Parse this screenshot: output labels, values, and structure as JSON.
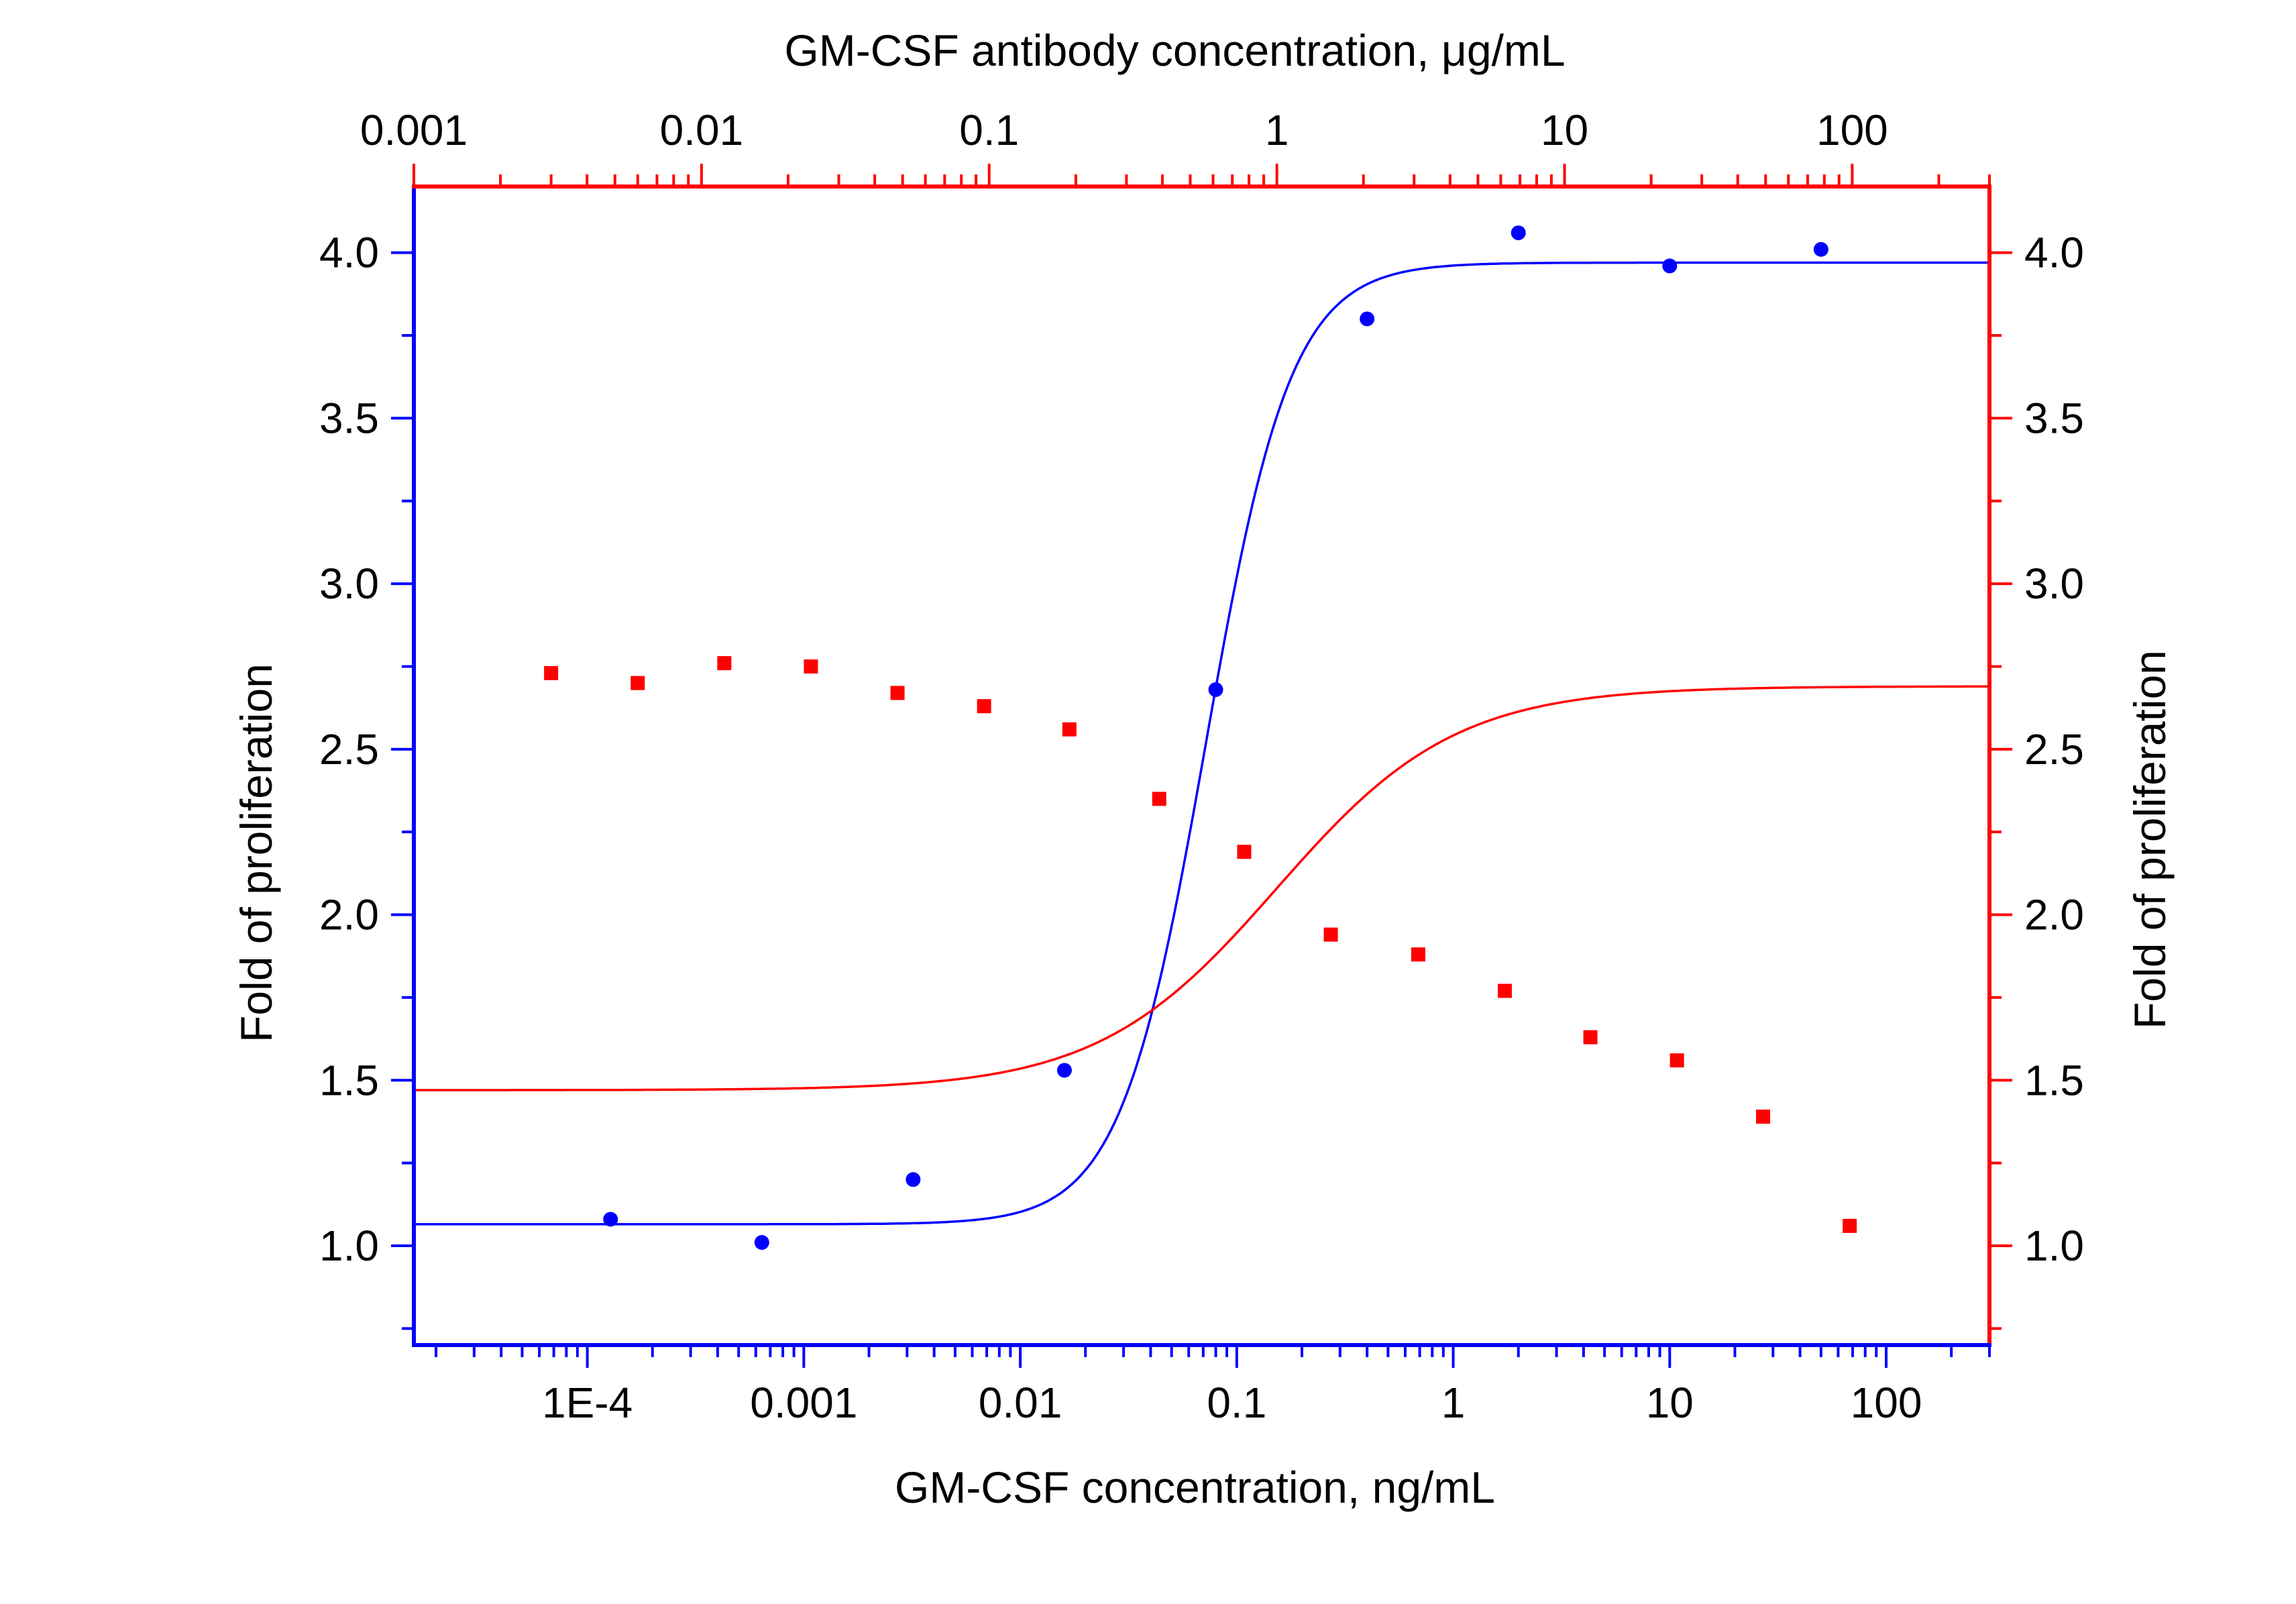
{
  "chart_data": {
    "type": "scatter",
    "colors": {
      "blue": "#0000ff",
      "red": "#ff0000",
      "text": "#000000",
      "background": "#ffffff"
    },
    "bottom_axis": {
      "title": "GM-CSF concentration, ng/mL",
      "scale": "log",
      "range": [
        1.58e-05,
        300
      ],
      "ticks": [
        {
          "value": 0.0001,
          "label": "1E-4"
        },
        {
          "value": 0.001,
          "label": "0.001"
        },
        {
          "value": 0.01,
          "label": "0.01"
        },
        {
          "value": 0.1,
          "label": "0.1"
        },
        {
          "value": 1,
          "label": "1"
        },
        {
          "value": 10,
          "label": "10"
        },
        {
          "value": 100,
          "label": "100"
        }
      ],
      "color": "#0000ff"
    },
    "top_axis": {
      "title": "GM-CSF antibody concentration, μg/mL",
      "scale": "log",
      "range": [
        0.001,
        300
      ],
      "ticks": [
        {
          "value": 0.001,
          "label": "0.001"
        },
        {
          "value": 0.01,
          "label": "0.01"
        },
        {
          "value": 0.1,
          "label": "0.1"
        },
        {
          "value": 1,
          "label": "1"
        },
        {
          "value": 10,
          "label": "10"
        },
        {
          "value": 100,
          "label": "100"
        }
      ],
      "color": "#ff0000"
    },
    "left_axis": {
      "title": "Fold of proliferation",
      "range": [
        0.7,
        4.2
      ],
      "ticks": [
        {
          "value": 1.0,
          "label": "1.0"
        },
        {
          "value": 1.5,
          "label": "1.5"
        },
        {
          "value": 2.0,
          "label": "2.0"
        },
        {
          "value": 2.5,
          "label": "2.5"
        },
        {
          "value": 3.0,
          "label": "3.0"
        },
        {
          "value": 3.5,
          "label": "3.5"
        },
        {
          "value": 4.0,
          "label": "4.0"
        }
      ],
      "color": "#0000ff"
    },
    "right_axis": {
      "title": "Fold of proliferation",
      "range": [
        0.7,
        4.2
      ],
      "ticks": [
        {
          "value": 1.0,
          "label": "1.0"
        },
        {
          "value": 1.5,
          "label": "1.5"
        },
        {
          "value": 2.0,
          "label": "2.0"
        },
        {
          "value": 2.5,
          "label": "2.5"
        },
        {
          "value": 3.0,
          "label": "3.0"
        },
        {
          "value": 3.5,
          "label": "3.5"
        },
        {
          "value": 4.0,
          "label": "4.0"
        }
      ],
      "color": "#ff0000"
    },
    "series": [
      {
        "x_axis": "bottom",
        "marker": "circle",
        "color": "#0000ff",
        "x": [
          0.000128,
          0.00064,
          0.0032,
          0.016,
          0.08,
          0.4,
          2.0,
          10,
          50
        ],
        "y": [
          1.08,
          1.01,
          1.2,
          1.53,
          2.68,
          3.8,
          4.06,
          3.96,
          4.01
        ],
        "fit": {
          "model": "4PL",
          "bottom": 1.065,
          "top": 3.97,
          "ec50": 0.072,
          "hill": 2.2
        }
      },
      {
        "x_axis": "top",
        "marker": "square",
        "color": "#ff0000",
        "x": [
          0.003,
          0.006,
          0.012,
          0.024,
          0.048,
          0.096,
          0.19,
          0.39,
          0.77,
          1.54,
          3.1,
          6.2,
          12.3,
          24.6,
          49,
          98
        ],
        "y": [
          2.73,
          2.7,
          2.76,
          2.75,
          2.67,
          2.63,
          2.56,
          2.35,
          2.19,
          1.94,
          1.88,
          1.77,
          1.63,
          1.56,
          1.39,
          1.06
        ],
        "fit": {
          "model": "4PL",
          "bottom": 1.47,
          "top": 2.69,
          "ec50": 1.0,
          "hill": 1.4
        }
      }
    ]
  }
}
